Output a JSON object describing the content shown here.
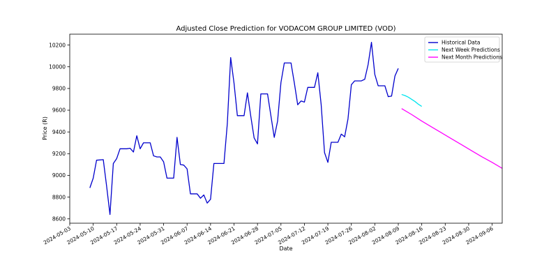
{
  "chart_data": {
    "type": "line",
    "title": "Adjusted Close Prediction for VODACOM GROUP LIMITED (VOD)",
    "xlabel": "Date",
    "ylabel": "Price (R)",
    "ylim": [
      8560,
      10300
    ],
    "xlim": [
      "2024-05-03",
      "2024-09-09"
    ],
    "x_ticks": [
      "2024-05-03",
      "2024-05-10",
      "2024-05-17",
      "2024-05-24",
      "2024-05-31",
      "2024-06-07",
      "2024-06-14",
      "2024-06-21",
      "2024-06-28",
      "2024-07-05",
      "2024-07-12",
      "2024-07-19",
      "2024-07-26",
      "2024-08-02",
      "2024-08-09",
      "2024-08-16",
      "2024-08-23",
      "2024-08-30",
      "2024-09-06"
    ],
    "y_ticks": [
      8600,
      8800,
      9000,
      9200,
      9400,
      9600,
      9800,
      10000,
      10200
    ],
    "legend_position": "top-right",
    "grid": false,
    "series": [
      {
        "name": "Historical Data",
        "color": "#0000cc",
        "points": [
          [
            "2024-05-09",
            8885
          ],
          [
            "2024-05-10",
            8975
          ],
          [
            "2024-05-11",
            9140
          ],
          [
            "2024-05-13",
            9145
          ],
          [
            "2024-05-14",
            8900
          ],
          [
            "2024-05-15",
            8640
          ],
          [
            "2024-05-16",
            9110
          ],
          [
            "2024-05-17",
            9155
          ],
          [
            "2024-05-18",
            9245
          ],
          [
            "2024-05-20",
            9245
          ],
          [
            "2024-05-21",
            9250
          ],
          [
            "2024-05-22",
            9215
          ],
          [
            "2024-05-23",
            9365
          ],
          [
            "2024-05-24",
            9245
          ],
          [
            "2024-05-25",
            9300
          ],
          [
            "2024-05-27",
            9300
          ],
          [
            "2024-05-28",
            9180
          ],
          [
            "2024-05-29",
            9170
          ],
          [
            "2024-05-30",
            9170
          ],
          [
            "2024-05-31",
            9125
          ],
          [
            "2024-06-01",
            8975
          ],
          [
            "2024-06-03",
            8975
          ],
          [
            "2024-06-04",
            9350
          ],
          [
            "2024-06-05",
            9100
          ],
          [
            "2024-06-06",
            9095
          ],
          [
            "2024-06-07",
            9060
          ],
          [
            "2024-06-08",
            8830
          ],
          [
            "2024-06-10",
            8830
          ],
          [
            "2024-06-11",
            8790
          ],
          [
            "2024-06-12",
            8820
          ],
          [
            "2024-06-13",
            8745
          ],
          [
            "2024-06-14",
            8780
          ],
          [
            "2024-06-15",
            9110
          ],
          [
            "2024-06-17",
            9110
          ],
          [
            "2024-06-18",
            9110
          ],
          [
            "2024-06-19",
            9475
          ],
          [
            "2024-06-20",
            10085
          ],
          [
            "2024-06-21",
            9850
          ],
          [
            "2024-06-22",
            9550
          ],
          [
            "2024-06-24",
            9550
          ],
          [
            "2024-06-25",
            9760
          ],
          [
            "2024-06-26",
            9545
          ],
          [
            "2024-06-27",
            9345
          ],
          [
            "2024-06-28",
            9290
          ],
          [
            "2024-06-29",
            9750
          ],
          [
            "2024-07-01",
            9750
          ],
          [
            "2024-07-02",
            9550
          ],
          [
            "2024-07-03",
            9350
          ],
          [
            "2024-07-04",
            9500
          ],
          [
            "2024-07-05",
            9855
          ],
          [
            "2024-07-06",
            10035
          ],
          [
            "2024-07-08",
            10035
          ],
          [
            "2024-07-09",
            9850
          ],
          [
            "2024-07-10",
            9650
          ],
          [
            "2024-07-11",
            9685
          ],
          [
            "2024-07-12",
            9675
          ],
          [
            "2024-07-13",
            9810
          ],
          [
            "2024-07-15",
            9810
          ],
          [
            "2024-07-16",
            9945
          ],
          [
            "2024-07-17",
            9650
          ],
          [
            "2024-07-18",
            9210
          ],
          [
            "2024-07-19",
            9120
          ],
          [
            "2024-07-20",
            9305
          ],
          [
            "2024-07-22",
            9305
          ],
          [
            "2024-07-23",
            9380
          ],
          [
            "2024-07-24",
            9355
          ],
          [
            "2024-07-25",
            9520
          ],
          [
            "2024-07-26",
            9835
          ],
          [
            "2024-07-27",
            9870
          ],
          [
            "2024-07-29",
            9870
          ],
          [
            "2024-07-30",
            9885
          ],
          [
            "2024-07-31",
            10020
          ],
          [
            "2024-08-01",
            10225
          ],
          [
            "2024-08-02",
            9930
          ],
          [
            "2024-08-03",
            9825
          ],
          [
            "2024-08-05",
            9825
          ],
          [
            "2024-08-06",
            9725
          ],
          [
            "2024-08-07",
            9730
          ],
          [
            "2024-08-08",
            9915
          ],
          [
            "2024-08-09",
            9985
          ]
        ]
      },
      {
        "name": "Next Week Predictions",
        "color": "#00e5ee",
        "points": [
          [
            "2024-08-10",
            9745
          ],
          [
            "2024-08-11",
            9735
          ],
          [
            "2024-08-12",
            9720
          ],
          [
            "2024-08-13",
            9700
          ],
          [
            "2024-08-14",
            9680
          ],
          [
            "2024-08-15",
            9655
          ],
          [
            "2024-08-16",
            9635
          ]
        ]
      },
      {
        "name": "Next Month Predictions",
        "color": "#ff00ff",
        "points": [
          [
            "2024-08-10",
            9615
          ],
          [
            "2024-08-13",
            9560
          ],
          [
            "2024-08-16",
            9500
          ],
          [
            "2024-08-19",
            9445
          ],
          [
            "2024-08-22",
            9390
          ],
          [
            "2024-08-25",
            9335
          ],
          [
            "2024-08-28",
            9280
          ],
          [
            "2024-08-31",
            9225
          ],
          [
            "2024-09-03",
            9170
          ],
          [
            "2024-09-06",
            9120
          ],
          [
            "2024-09-09",
            9065
          ],
          [
            "2024-09-12",
            8990
          ]
        ]
      }
    ]
  }
}
